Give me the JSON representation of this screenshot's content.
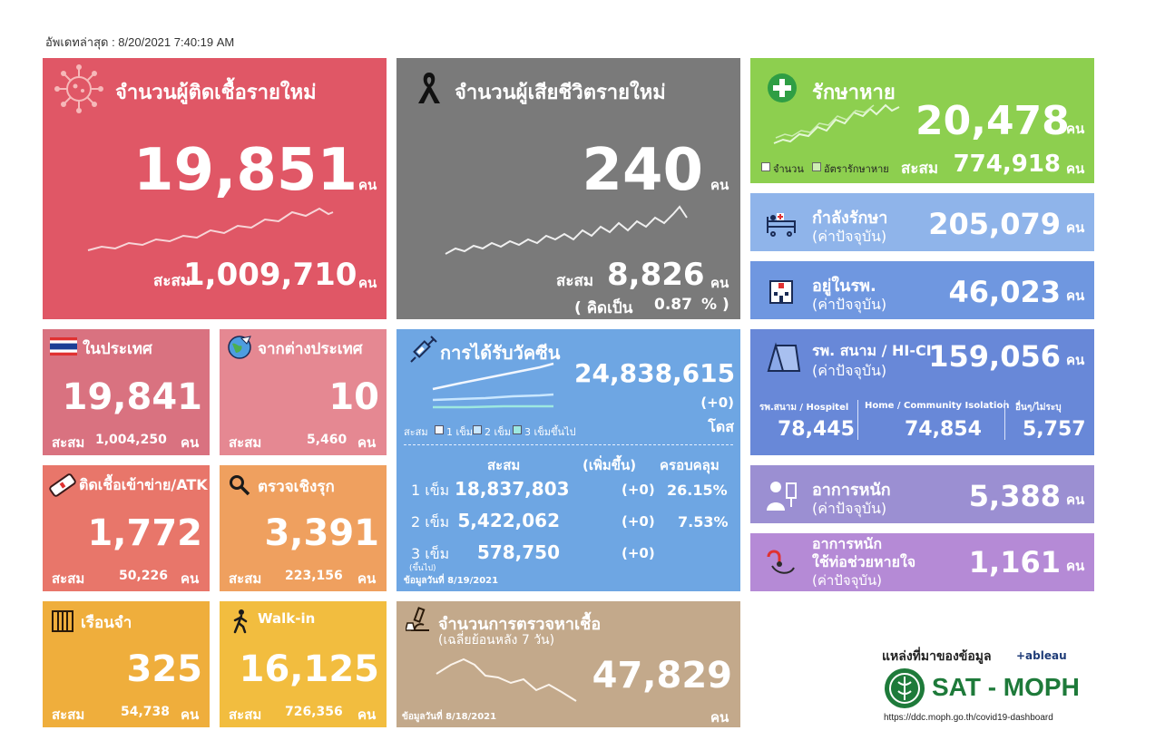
{
  "updated": "อัพเดทล่าสุด : 8/20/2021 7:40:19 AM",
  "unit": "คน",
  "cum_label": "สะสม",
  "new_cases": {
    "title": "จำนวนผู้ติดเชื้อรายใหม่",
    "value": "19,851",
    "cum": "1,009,710",
    "color": "#e05766"
  },
  "new_deaths": {
    "title": "จำนวนผู้เสียชีวิตรายใหม่",
    "value": "240",
    "cum": "8,826",
    "pct_prefix": "( คิดเป็น",
    "pct_value": "0.87",
    "pct_suffix": "% )",
    "color": "#7a7a7a"
  },
  "recovered": {
    "title": "รักษาหาย",
    "value": "20,478",
    "cum": "774,918",
    "legend_count": "จำนวน",
    "legend_rate": "อัตรารักษาหาย",
    "color": "#8dcf4f"
  },
  "treating": {
    "title": "กำลังรักษา",
    "note": "(ค่าปัจจุบัน)",
    "value": "205,079",
    "color": "#8fb4ea"
  },
  "in_hospital": {
    "title": "อยู่ในรพ.",
    "note": "(ค่าปัจจุบัน)",
    "value": "46,023",
    "color": "#6f97e0"
  },
  "field_hospital": {
    "title": "รพ. สนาม / HI-CI",
    "note": "(ค่าปัจจุบัน)",
    "value": "159,056",
    "color": "#6888d8",
    "cols": [
      {
        "label": "รพ.สนาม / Hospitel",
        "value": "78,445"
      },
      {
        "label": "Home / Community Isolation",
        "value": "74,854"
      },
      {
        "label": "อื่นๆ/ไม่ระบุ",
        "value": "5,757"
      }
    ]
  },
  "severe": {
    "title": "อาการหนัก",
    "note": "(ค่าปัจจุบัน)",
    "value": "5,388",
    "color": "#9b8fd2"
  },
  "ventilator": {
    "title": "อาการหนัก",
    "title2": "ใช้ท่อช่วยหายใจ",
    "note": "(ค่าปัจจุบัน)",
    "value": "1,161",
    "color": "#b58ad6"
  },
  "domestic": {
    "title": "ในประเทศ",
    "value": "19,841",
    "cum": "1,004,250",
    "color": "#d97280"
  },
  "imported": {
    "title": "จากต่างประเทศ",
    "value": "10",
    "cum": "5,460",
    "color": "#e58892"
  },
  "prison_atk": {
    "title": "ติดเชื้อเข้าข่าย/ATK",
    "value": "1,772",
    "cum": "50,226",
    "color": "#e8766a"
  },
  "proactive": {
    "title": "ตรวจเชิงรุก",
    "value": "3,391",
    "cum": "223,156",
    "color": "#efa05f"
  },
  "prison": {
    "title": "เรือนจำ",
    "value": "325",
    "cum": "54,738",
    "color": "#efae3c"
  },
  "walkin": {
    "title": "Walk-in",
    "value": "16,125",
    "cum": "726,356",
    "color": "#f2bd3f"
  },
  "vaccine": {
    "title": "การได้รับวัคซีน",
    "total": "24,838,615",
    "change": "(+0)",
    "unit": "โดส",
    "legend_prefix": "สะสม",
    "legend": [
      "1 เข็ม",
      "2 เข็ม",
      "3 เข็มขึ้นไป"
    ],
    "headers": [
      "สะสม",
      "(เพิ่มขึ้น)",
      "ครอบคลุม"
    ],
    "rows": [
      {
        "dose": "1 เข็ม",
        "cum": "18,837,803",
        "inc": "(+0)",
        "cov": "26.15%"
      },
      {
        "dose": "2 เข็ม",
        "cum": "5,422,062",
        "inc": "(+0)",
        "cov": "7.53%"
      },
      {
        "dose": "3 เข็ม",
        "dose_sub": "(ขึ้นไป)",
        "cum": "578,750",
        "inc": "(+0)",
        "cov": ""
      }
    ],
    "date_note": "ข้อมูลวันที่ 8/19/2021",
    "color": "#6ea6e3"
  },
  "tests": {
    "title": "จำนวนการตรวจหาเชื้อ",
    "note": "(เฉลี่ยย้อนหลัง 7 วัน)",
    "value": "47,829",
    "date_note": "ข้อมูลวันที่ 8/18/2021",
    "color": "#c3a98b"
  },
  "source": {
    "label": "แหล่งที่มาของข้อมูล",
    "tableau": "+ableau",
    "brand": "SAT - MOPH",
    "url": "https://ddc.moph.go.th/covid19-dashboard"
  },
  "icons": {
    "virus": "virus-icon",
    "ribbon": "black-ribbon-icon",
    "cross": "medical-cross-icon",
    "bed": "hospital-bed-icon",
    "hospital": "hospital-building-icon",
    "tent": "tent-icon",
    "patient": "patient-icon",
    "ventilator": "ventilator-icon",
    "flag": "thai-flag-icon",
    "globe": "globe-plane-icon",
    "atk": "atk-test-icon",
    "search": "search-icon",
    "jail": "prison-bars-icon",
    "walk": "walking-person-icon",
    "syringe": "syringe-icon",
    "microscope": "microscope-icon"
  }
}
